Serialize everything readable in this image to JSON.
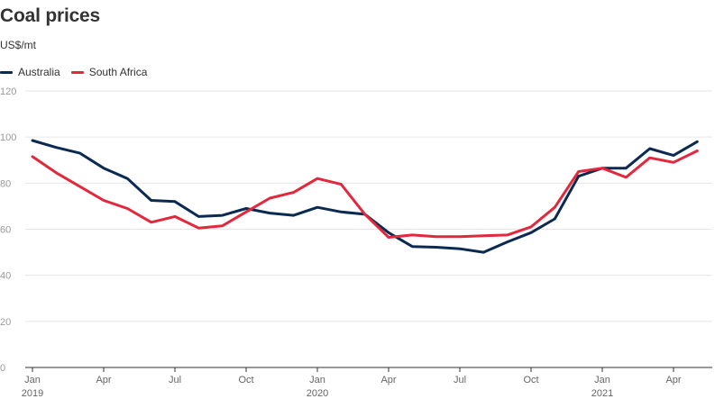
{
  "chart_data": {
    "type": "line",
    "title": "Coal prices",
    "subtitle": "US$/mt",
    "xlabel": "",
    "ylabel": "",
    "ylim": [
      0,
      120
    ],
    "yticks": [
      0,
      20,
      40,
      60,
      80,
      100,
      120
    ],
    "grid": true,
    "legend_position": "top-left",
    "x_range": [
      "2019-01",
      "2021-05"
    ],
    "x_ticks": [
      {
        "month": "2019-01",
        "label": "Jan",
        "year": "2019"
      },
      {
        "month": "2019-04",
        "label": "Apr",
        "year": ""
      },
      {
        "month": "2019-07",
        "label": "Jul",
        "year": ""
      },
      {
        "month": "2019-10",
        "label": "Oct",
        "year": ""
      },
      {
        "month": "2020-01",
        "label": "Jan",
        "year": "2020"
      },
      {
        "month": "2020-04",
        "label": "Apr",
        "year": ""
      },
      {
        "month": "2020-07",
        "label": "Jul",
        "year": ""
      },
      {
        "month": "2020-10",
        "label": "Oct",
        "year": ""
      },
      {
        "month": "2021-01",
        "label": "Jan",
        "year": "2021"
      },
      {
        "month": "2021-04",
        "label": "Apr",
        "year": ""
      }
    ],
    "x": [
      "2019-01",
      "2019-02",
      "2019-03",
      "2019-04",
      "2019-05",
      "2019-06",
      "2019-07",
      "2019-08",
      "2019-09",
      "2019-10",
      "2019-11",
      "2019-12",
      "2020-01",
      "2020-02",
      "2020-03",
      "2020-04",
      "2020-05",
      "2020-06",
      "2020-07",
      "2020-08",
      "2020-09",
      "2020-10",
      "2020-11",
      "2020-12",
      "2021-01",
      "2021-02",
      "2021-03",
      "2021-04",
      "2021-05"
    ],
    "series": [
      {
        "name": "Australia",
        "color": "#0b2a52",
        "values": [
          98.5,
          95.5,
          93,
          86.5,
          82,
          72.5,
          72,
          65.5,
          66,
          69,
          67,
          66,
          69.5,
          67.5,
          66.5,
          58.5,
          52.5,
          52.2,
          51.5,
          50,
          54.5,
          58.5,
          64.5,
          83,
          86.5,
          86.5,
          95,
          92,
          98
        ]
      },
      {
        "name": "South Africa",
        "color": "#e1283c",
        "values": [
          91.5,
          84.5,
          78.5,
          72.5,
          69,
          63,
          65.5,
          60.5,
          61.5,
          67.5,
          73.5,
          76,
          82,
          79.5,
          66.5,
          56.5,
          57.5,
          56.8,
          56.8,
          57.2,
          57.5,
          61,
          69.5,
          85,
          86.5,
          82.5,
          91,
          89,
          94
        ]
      }
    ]
  }
}
